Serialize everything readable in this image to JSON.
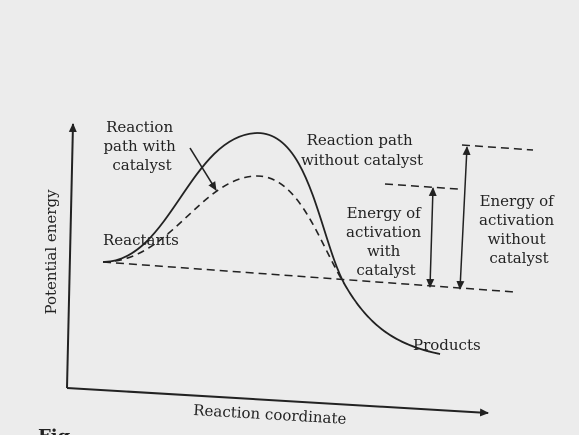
{
  "axes": {
    "y_label": "Potential energy",
    "x_label": "Reaction coordinate"
  },
  "labels": {
    "reactants": "Reactants",
    "products": "Products",
    "path_with_catalyst": [
      "Reaction",
      "path with",
      "catalyst"
    ],
    "path_without_catalyst": [
      "Reaction path",
      "without catalyst"
    ],
    "ea_with_catalyst": [
      "Energy of",
      "activation",
      "with",
      "catalyst"
    ],
    "ea_without_catalyst": [
      "Energy of",
      "activation",
      "without",
      "catalyst"
    ]
  },
  "footer_fragment": "Fig",
  "colors": {
    "ink": "#222222",
    "paper": "#ececec"
  }
}
